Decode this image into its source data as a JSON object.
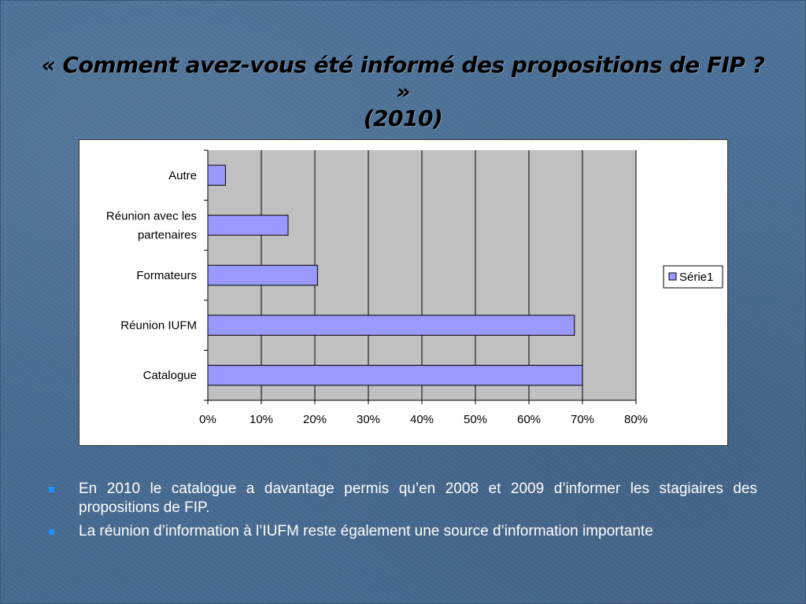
{
  "title": {
    "line1": "« Comment avez-vous été informé des propositions de FIP ? »",
    "line2": "(2010)"
  },
  "chart_data": {
    "type": "bar",
    "orientation": "horizontal",
    "categories": [
      "Catalogue",
      "Réunion IUFM",
      "Formateurs",
      "Réunion avec les partenaires",
      "Autre"
    ],
    "category_label_lines": [
      [
        "Catalogue"
      ],
      [
        "Réunion IUFM"
      ],
      [
        "Formateurs"
      ],
      [
        "Réunion avec les",
        "partenaires"
      ],
      [
        "Autre"
      ]
    ],
    "series": [
      {
        "name": "Série1",
        "values": [
          0.7,
          0.685,
          0.205,
          0.15,
          0.033
        ]
      }
    ],
    "xlim": [
      0,
      0.8
    ],
    "xticks": [
      0,
      0.1,
      0.2,
      0.3,
      0.4,
      0.5,
      0.6,
      0.7,
      0.8
    ],
    "xtick_labels": [
      "0%",
      "10%",
      "20%",
      "30%",
      "40%",
      "50%",
      "60%",
      "70%",
      "80%"
    ],
    "grid": true,
    "legend": "right",
    "colors": {
      "bar_fill": "#9999ff",
      "bar_stroke": "#000000",
      "plot_bg": "#c0c0c0"
    }
  },
  "bullets": [
    "En 2010 le catalogue a davantage permis qu’en 2008 et 2009 d’informer les stagiaires des propositions de FIP.",
    "La réunion d’information à l’IUFM reste également une source d’information importante"
  ]
}
